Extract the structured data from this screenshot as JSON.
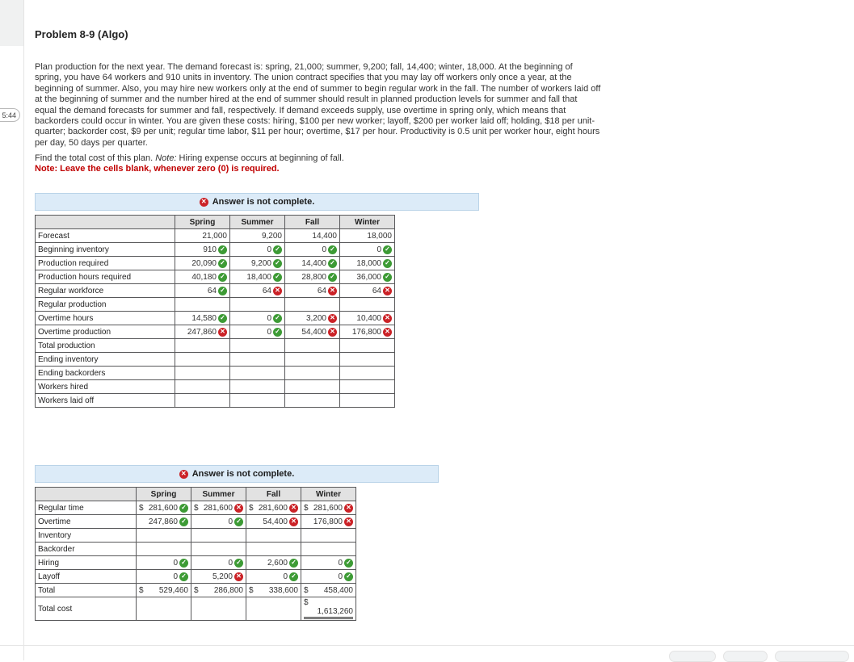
{
  "timer": {
    "text": "5:44"
  },
  "page": {
    "title": "Problem 8-9 (Algo)",
    "problem_text": "Plan production for the next year. The demand forecast is: spring, 21,000; summer, 9,200; fall, 14,400; winter, 18,000. At the beginning of spring, you have 64 workers and 910 units in inventory. The union contract specifies that you may lay off workers only once a year, at the beginning of summer. Also, you may hire new workers only at the end of summer to begin regular work in the fall. The number of workers laid off at the beginning of summer and the number hired at the end of summer should result in planned production levels for summer and fall that equal the demand forecasts for summer and fall, respectively. If demand exceeds supply, use overtime in spring only, which means that backorders could occur in winter. You are given these costs: hiring, $100 per new worker; layoff, $200 per worker laid off; holding, $18 per unit-quarter; backorder cost, $9 per unit; regular time labor, $11 per hour; overtime, $17 per hour. Productivity is 0.5 unit per worker hour, eight hours per day, 50 days per quarter.",
    "find_sentence": "Find the total cost of this plan. ",
    "find_note_label": "Note:",
    "find_note_rest": " Hiring expense occurs at beginning of fall.",
    "red_note": "Note: Leave the cells blank, whenever zero (0) is required."
  },
  "status_banner": {
    "text": "Answer is not complete.",
    "icon": "red-x-circle"
  },
  "icons": {
    "correct": "green-check-circle",
    "incorrect": "red-x-circle"
  },
  "colors": {
    "correct_green": "#3d9b35",
    "incorrect_red": "#cb2227",
    "banner_bg": "#dcebf8",
    "banner_border": "#bad3e8",
    "note_red": "#c00000",
    "table_header_gray": "#e2e2e2"
  },
  "table1": {
    "columns": [
      "Spring",
      "Summer",
      "Fall",
      "Winter"
    ],
    "rows": [
      {
        "label": "Forecast",
        "cells": [
          {
            "v": "21,000"
          },
          {
            "v": "9,200"
          },
          {
            "v": "14,400"
          },
          {
            "v": "18,000"
          }
        ]
      },
      {
        "label": "Beginning inventory",
        "cells": [
          {
            "v": "910",
            "icon": "check"
          },
          {
            "v": "0",
            "icon": "check"
          },
          {
            "v": "0",
            "icon": "check"
          },
          {
            "v": "0",
            "icon": "check"
          }
        ]
      },
      {
        "label": "Production required",
        "cells": [
          {
            "v": "20,090",
            "icon": "check"
          },
          {
            "v": "9,200",
            "icon": "check"
          },
          {
            "v": "14,400",
            "icon": "check"
          },
          {
            "v": "18,000",
            "icon": "check"
          }
        ]
      },
      {
        "label": "Production hours required",
        "cells": [
          {
            "v": "40,180",
            "icon": "check"
          },
          {
            "v": "18,400",
            "icon": "check"
          },
          {
            "v": "28,800",
            "icon": "check"
          },
          {
            "v": "36,000",
            "icon": "check"
          }
        ]
      },
      {
        "label": "Regular workforce",
        "cells": [
          {
            "v": "64",
            "icon": "check"
          },
          {
            "v": "64",
            "icon": "x"
          },
          {
            "v": "64",
            "icon": "x"
          },
          {
            "v": "64",
            "icon": "x"
          }
        ]
      },
      {
        "label": "Regular production",
        "cells": [
          {},
          {},
          {},
          {}
        ]
      },
      {
        "label": "Overtime hours",
        "cells": [
          {
            "v": "14,580",
            "icon": "check"
          },
          {
            "v": "0",
            "icon": "check"
          },
          {
            "v": "3,200",
            "icon": "x"
          },
          {
            "v": "10,400",
            "icon": "x"
          }
        ]
      },
      {
        "label": "Overtime production",
        "cells": [
          {
            "v": "247,860",
            "icon": "x"
          },
          {
            "v": "0",
            "icon": "check"
          },
          {
            "v": "54,400",
            "icon": "x"
          },
          {
            "v": "176,800",
            "icon": "x"
          }
        ]
      },
      {
        "label": "Total production",
        "cells": [
          {},
          {},
          {},
          {}
        ]
      },
      {
        "label": "Ending inventory",
        "cells": [
          {},
          {},
          {},
          {}
        ]
      },
      {
        "label": "Ending backorders",
        "cells": [
          {},
          {},
          {},
          {}
        ]
      },
      {
        "label": "Workers hired",
        "cells": [
          {},
          {},
          {},
          {}
        ]
      },
      {
        "label": "Workers laid off",
        "cells": [
          {},
          {},
          {},
          {}
        ]
      }
    ]
  },
  "table2": {
    "columns": [
      "Spring",
      "Summer",
      "Fall",
      "Winter"
    ],
    "rows": [
      {
        "label": "Regular time",
        "cells": [
          {
            "prefix": "$",
            "v": "281,600",
            "icon": "check"
          },
          {
            "prefix": "$",
            "v": "281,600",
            "icon": "x"
          },
          {
            "prefix": "$",
            "v": "281,600",
            "icon": "x"
          },
          {
            "prefix": "$",
            "v": "281,600",
            "icon": "x"
          }
        ]
      },
      {
        "label": "Overtime",
        "cells": [
          {
            "v": "247,860",
            "icon": "check"
          },
          {
            "v": "0",
            "icon": "check"
          },
          {
            "v": "54,400",
            "icon": "x"
          },
          {
            "v": "176,800",
            "icon": "x"
          }
        ]
      },
      {
        "label": "Inventory",
        "cells": [
          {},
          {},
          {},
          {}
        ]
      },
      {
        "label": "Backorder",
        "cells": [
          {},
          {},
          {},
          {}
        ]
      },
      {
        "label": "Hiring",
        "cells": [
          {
            "v": "0",
            "icon": "check"
          },
          {
            "v": "0",
            "icon": "check"
          },
          {
            "v": "2,600",
            "icon": "check"
          },
          {
            "v": "0",
            "icon": "check"
          }
        ]
      },
      {
        "label": "Layoff",
        "cells": [
          {
            "v": "0",
            "icon": "check"
          },
          {
            "v": "5,200",
            "icon": "x"
          },
          {
            "v": "0",
            "icon": "check"
          },
          {
            "v": "0",
            "icon": "check"
          }
        ]
      },
      {
        "label": "Total",
        "cells": [
          {
            "prefix": "$",
            "v": "529,460"
          },
          {
            "prefix": "$",
            "v": "286,800"
          },
          {
            "prefix": "$",
            "v": "338,600"
          },
          {
            "prefix": "$",
            "v": "458,400"
          }
        ]
      },
      {
        "label": "Total cost",
        "cells": [
          {},
          {},
          {},
          {
            "prefix": "$",
            "v": "1,613,260",
            "stacked": true,
            "underline": "double"
          }
        ]
      }
    ]
  }
}
